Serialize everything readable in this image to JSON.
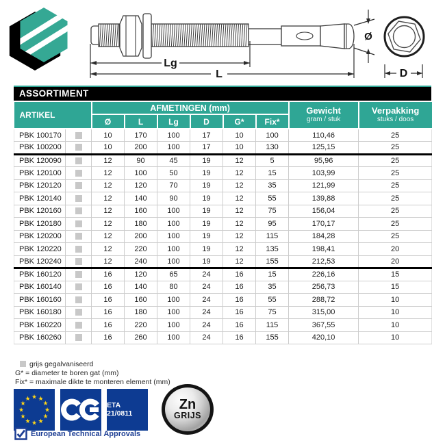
{
  "colors": {
    "teal": "#2FA695",
    "header_black": "#000000",
    "eu_blue": "#0D3B92",
    "star_yellow": "#FFD617",
    "approval_blue": "#1D3E94",
    "swatch_gray": "#C8C8C8"
  },
  "drawing": {
    "lg_label": "Lg",
    "l_label": "L",
    "diameter_label": "Ø",
    "d_label": "D"
  },
  "table": {
    "title": "ASSORTIMENT",
    "columns": {
      "artikel": "ARTIKEL",
      "afmetingen": "AFMETINGEN (mm)",
      "dims": [
        "Ø",
        "L",
        "Lg",
        "D",
        "G*",
        "Fix*"
      ],
      "gewicht": "Gewicht",
      "gewicht_sub": "gram / stuk",
      "verpakking": "Verpakking",
      "verpakking_sub": "stuks / doos"
    },
    "groups": [
      {
        "rows": [
          [
            "PBK 100170",
            "10",
            "170",
            "100",
            "17",
            "10",
            "100",
            "110,46",
            "25"
          ],
          [
            "PBK 100200",
            "10",
            "200",
            "100",
            "17",
            "10",
            "130",
            "125,15",
            "25"
          ]
        ]
      },
      {
        "rows": [
          [
            "PBK 120090",
            "12",
            "90",
            "45",
            "19",
            "12",
            "5",
            "95,96",
            "25"
          ],
          [
            "PBK 120100",
            "12",
            "100",
            "50",
            "19",
            "12",
            "15",
            "103,99",
            "25"
          ],
          [
            "PBK 120120",
            "12",
            "120",
            "70",
            "19",
            "12",
            "35",
            "121,99",
            "25"
          ],
          [
            "PBK 120140",
            "12",
            "140",
            "90",
            "19",
            "12",
            "55",
            "139,88",
            "25"
          ],
          [
            "PBK 120160",
            "12",
            "160",
            "100",
            "19",
            "12",
            "75",
            "156,04",
            "25"
          ],
          [
            "PBK 120180",
            "12",
            "180",
            "100",
            "19",
            "12",
            "95",
            "170,17",
            "25"
          ],
          [
            "PBK 120200",
            "12",
            "200",
            "100",
            "19",
            "12",
            "115",
            "184,28",
            "25"
          ],
          [
            "PBK 120220",
            "12",
            "220",
            "100",
            "19",
            "12",
            "135",
            "198,41",
            "20"
          ],
          [
            "PBK 120240",
            "12",
            "240",
            "100",
            "19",
            "12",
            "155",
            "212,53",
            "20"
          ]
        ]
      },
      {
        "rows": [
          [
            "PBK 160120",
            "16",
            "120",
            "65",
            "24",
            "16",
            "15",
            "226,16",
            "15"
          ],
          [
            "PBK 160140",
            "16",
            "140",
            "80",
            "24",
            "16",
            "35",
            "256,73",
            "15"
          ],
          [
            "PBK 160160",
            "16",
            "160",
            "100",
            "24",
            "16",
            "55",
            "288,72",
            "10"
          ],
          [
            "PBK 160180",
            "16",
            "180",
            "100",
            "24",
            "16",
            "75",
            "315,00",
            "10"
          ],
          [
            "PBK 160220",
            "16",
            "220",
            "100",
            "24",
            "16",
            "115",
            "367,55",
            "10"
          ],
          [
            "PBK 160260",
            "16",
            "260",
            "100",
            "24",
            "16",
            "155",
            "420,10",
            "10"
          ]
        ]
      }
    ]
  },
  "footnotes": {
    "swatch_note": "grijs gegalvaniseerd",
    "g_note": "G* = diameter te boren gat (mm)",
    "fix_note": "Fix* = maximale dikte te monteren element (mm)"
  },
  "badges": {
    "ce_label": "CE",
    "eta_label": "ETA 21/0811",
    "zn_top": "Zn",
    "zn_bottom": "GRIJS",
    "eu_star_count": 12,
    "approval_text": "European Technical Approvals"
  }
}
